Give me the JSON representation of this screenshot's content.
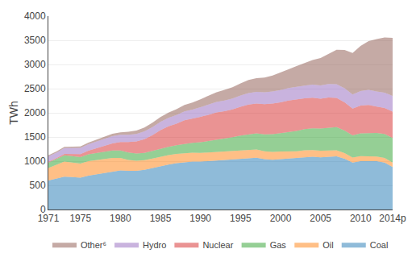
{
  "chart_data": {
    "type": "area",
    "stacked": true,
    "x": [
      1971,
      1972,
      1973,
      1974,
      1975,
      1976,
      1977,
      1978,
      1979,
      1980,
      1981,
      1982,
      1983,
      1984,
      1985,
      1986,
      1987,
      1988,
      1989,
      1990,
      1991,
      1992,
      1993,
      1994,
      1995,
      1996,
      1997,
      1998,
      1999,
      2000,
      2001,
      2002,
      2003,
      2004,
      2005,
      2006,
      2007,
      2008,
      2009,
      2010,
      2011,
      2012,
      2013,
      2014
    ],
    "series": [
      {
        "name": "Coal",
        "values": [
          600,
          640,
          680,
          670,
          660,
          700,
          730,
          760,
          790,
          810,
          800,
          800,
          820,
          860,
          900,
          930,
          960,
          980,
          990,
          990,
          1000,
          1010,
          1020,
          1030,
          1050,
          1060,
          1070,
          1040,
          1030,
          1040,
          1050,
          1060,
          1080,
          1090,
          1080,
          1090,
          1100,
          1050,
          970,
          1000,
          1000,
          1000,
          970,
          880
        ]
      },
      {
        "name": "Oil",
        "values": [
          260,
          280,
          310,
          300,
          290,
          300,
          295,
          285,
          275,
          255,
          225,
          210,
          200,
          195,
          195,
          195,
          190,
          185,
          185,
          180,
          180,
          180,
          180,
          175,
          175,
          175,
          170,
          165,
          160,
          160,
          150,
          145,
          145,
          140,
          135,
          130,
          125,
          115,
          105,
          105,
          100,
          95,
          95,
          90
        ]
      },
      {
        "name": "Gas",
        "values": [
          110,
          120,
          130,
          135,
          135,
          140,
          145,
          150,
          155,
          155,
          155,
          150,
          150,
          158,
          162,
          170,
          180,
          195,
          205,
          220,
          235,
          255,
          270,
          290,
          305,
          320,
          335,
          350,
          368,
          380,
          398,
          418,
          438,
          448,
          460,
          470,
          478,
          468,
          458,
          468,
          478,
          488,
          498,
          508
        ]
      },
      {
        "name": "Nuclear",
        "values": [
          18,
          22,
          30,
          45,
          60,
          75,
          95,
          125,
          148,
          175,
          215,
          248,
          285,
          325,
          385,
          425,
          445,
          485,
          496,
          525,
          545,
          565,
          565,
          575,
          595,
          615,
          615,
          625,
          635,
          635,
          655,
          655,
          635,
          635,
          615,
          625,
          605,
          585,
          555,
          575,
          585,
          545,
          535,
          545
        ]
      },
      {
        "name": "Hydro",
        "values": [
          110,
          115,
          120,
          125,
          130,
          135,
          140,
          145,
          150,
          150,
          150,
          155,
          160,
          165,
          170,
          175,
          180,
          185,
          190,
          200,
          210,
          215,
          220,
          225,
          235,
          240,
          245,
          245,
          250,
          255,
          260,
          265,
          265,
          270,
          275,
          280,
          285,
          290,
          290,
          300,
          310,
          315,
          320,
          325
        ]
      },
      {
        "name": "Other⁶",
        "values": [
          22,
          24,
          26,
          28,
          30,
          32,
          36,
          40,
          47,
          52,
          62,
          72,
          82,
          92,
          100,
          110,
          120,
          132,
          148,
          165,
          180,
          200,
          218,
          235,
          250,
          268,
          282,
          305,
          328,
          360,
          388,
          425,
          462,
          508,
          568,
          630,
          710,
          790,
          860,
          935,
          1010,
          1080,
          1140,
          1200
        ]
      }
    ],
    "ylabel": "TWh",
    "xlim": [
      1971,
      2014
    ],
    "xticks": [
      1971,
      1975,
      1980,
      1985,
      1990,
      1995,
      2000,
      2005,
      2010,
      {
        "value": 2014,
        "label": "2014p"
      }
    ],
    "ylim": [
      0,
      4000
    ],
    "yticks": [
      0,
      500,
      1000,
      1500,
      2000,
      2500,
      3000,
      3500,
      4000
    ],
    "grid": true,
    "legend": "bottom"
  }
}
